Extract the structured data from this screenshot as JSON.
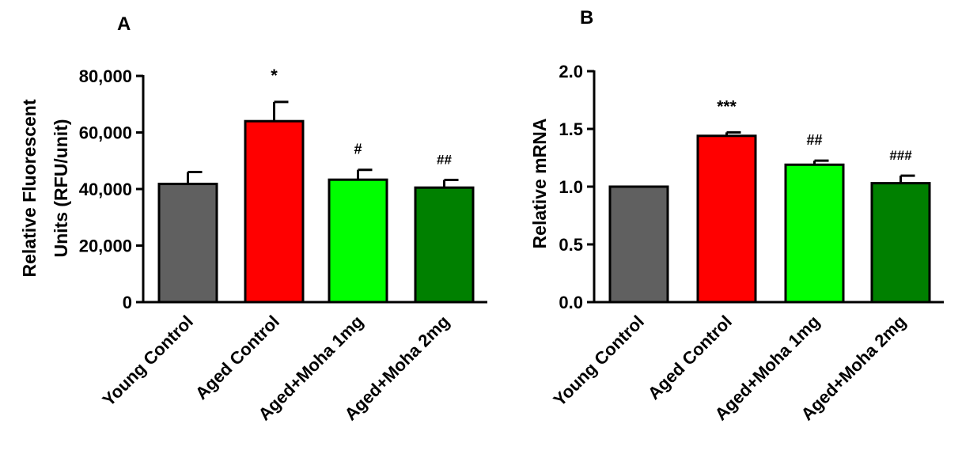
{
  "chart_data": [
    {
      "type": "bar",
      "panel_label": "A",
      "ylabel_lines": [
        "Relative Fluorescent",
        "Units (RFU/unit)"
      ],
      "ylim": [
        0,
        80000
      ],
      "yticks": [
        0,
        20000,
        40000,
        60000,
        80000
      ],
      "ytick_labels": [
        "0",
        "20,000",
        "40,000",
        "60,000",
        "80,000"
      ],
      "categories": [
        "Young Control",
        "Aged Control",
        "Aged+Moha 1mg",
        "Aged+Moha 2mg"
      ],
      "values": [
        41800,
        64000,
        43300,
        40500
      ],
      "errors": [
        4200,
        6800,
        3500,
        2700
      ],
      "annotations": [
        "",
        "*",
        "#",
        "##"
      ],
      "colors": [
        "#606060",
        "#ff0000",
        "#00ff00",
        "#008000"
      ]
    },
    {
      "type": "bar",
      "panel_label": "B",
      "ylabel_lines": [
        "Relative mRNA"
      ],
      "ylim": [
        0,
        2.0
      ],
      "yticks": [
        0,
        0.5,
        1.0,
        1.5,
        2.0
      ],
      "ytick_labels": [
        "0.0",
        "0.5",
        "1.0",
        "1.5",
        "2.0"
      ],
      "categories": [
        "Young Control",
        "Aged Control",
        "Aged+Moha 1mg",
        "Aged+Moha 2mg"
      ],
      "values": [
        1.0,
        1.44,
        1.19,
        1.03
      ],
      "errors": [
        0,
        0.03,
        0.035,
        0.065
      ],
      "annotations": [
        "",
        "***",
        "##",
        "###"
      ],
      "colors": [
        "#606060",
        "#ff0000",
        "#00ff00",
        "#008000"
      ]
    }
  ]
}
